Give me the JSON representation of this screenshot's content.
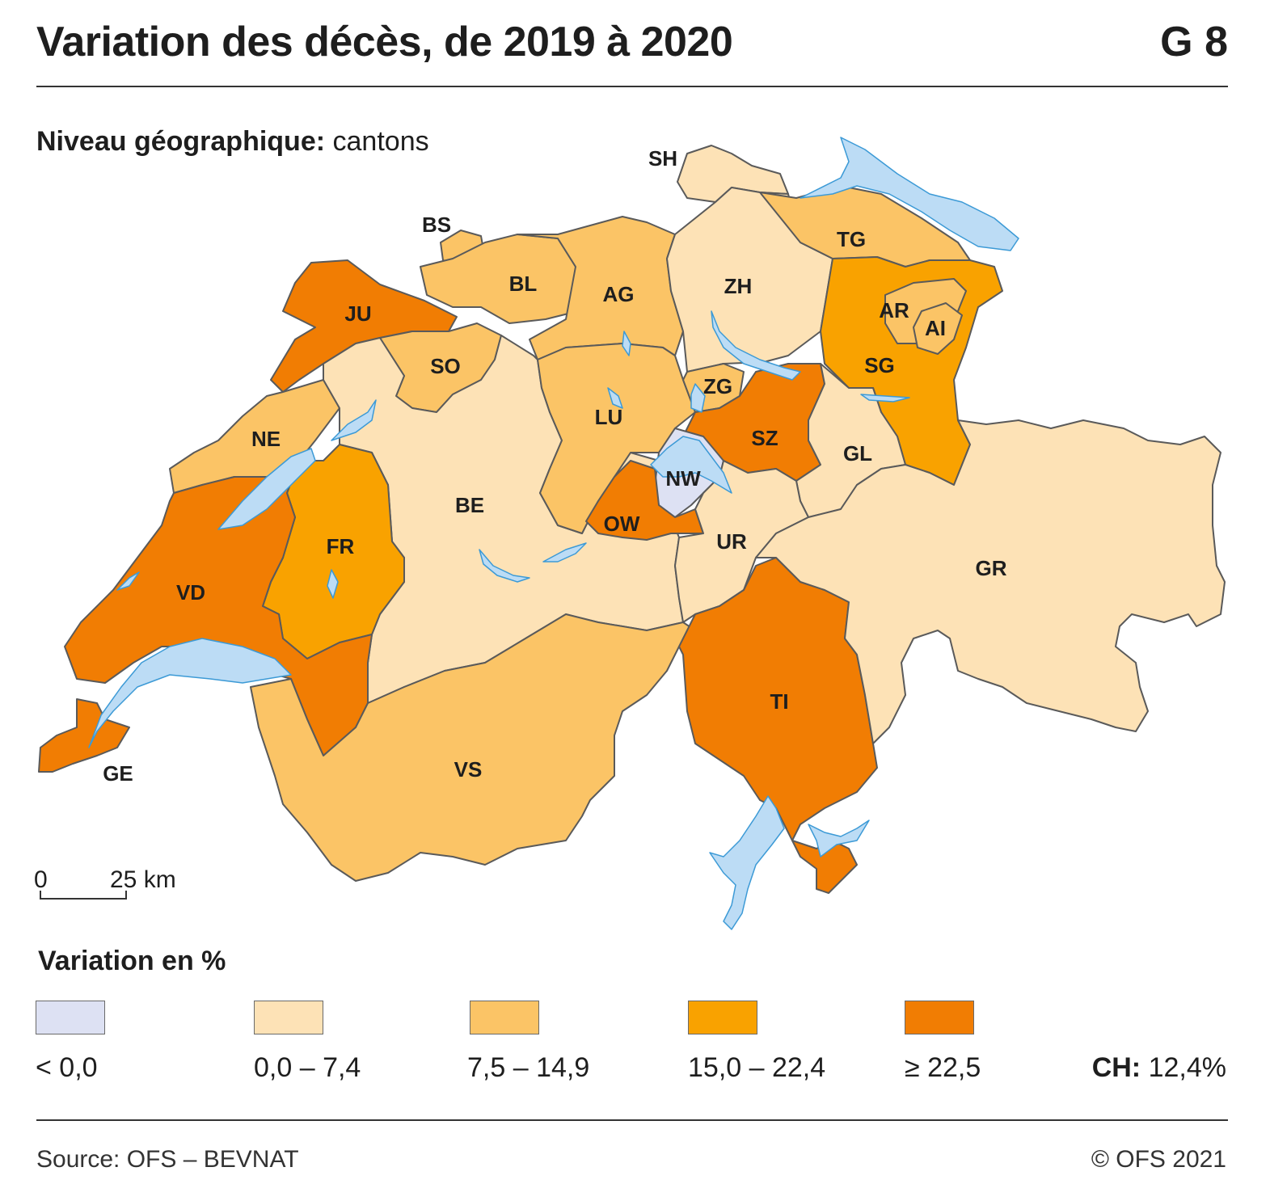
{
  "header": {
    "title": "Variation des décès, de 2019 à 2020",
    "code": "G 8"
  },
  "geo_level": {
    "label": "Niveau géographique:",
    "value": "cantons"
  },
  "colors": {
    "class_1": "#dde1f3",
    "class_2": "#fde2b6",
    "class_3": "#fbc466",
    "class_4": "#f9a200",
    "class_5": "#f17d03",
    "lake": "#bcdcf5",
    "lake_border": "#3c9ad6",
    "border": "#5a5a5a"
  },
  "legend": {
    "title": "Variation en %",
    "classes": [
      {
        "label": "< 0,0",
        "color_key": "class_1"
      },
      {
        "label": "0,0 – 7,4",
        "color_key": "class_2"
      },
      {
        "label": "7,5 – 14,9",
        "color_key": "class_3"
      },
      {
        "label": "15,0 – 22,4",
        "color_key": "class_4"
      },
      {
        "label": "≥ 22,5",
        "color_key": "class_5"
      }
    ],
    "national": {
      "label": "CH:",
      "value": "12,4%"
    }
  },
  "scale": {
    "start": "0",
    "end": "25 km"
  },
  "cantons": [
    {
      "code": "SH",
      "class": 2
    },
    {
      "code": "BS",
      "class": 3
    },
    {
      "code": "BL",
      "class": 3
    },
    {
      "code": "AG",
      "class": 3
    },
    {
      "code": "ZH",
      "class": 2
    },
    {
      "code": "TG",
      "class": 3
    },
    {
      "code": "AR",
      "class": 3
    },
    {
      "code": "AI",
      "class": 3
    },
    {
      "code": "SG",
      "class": 4
    },
    {
      "code": "JU",
      "class": 5
    },
    {
      "code": "SO",
      "class": 3
    },
    {
      "code": "NE",
      "class": 3
    },
    {
      "code": "BE",
      "class": 2
    },
    {
      "code": "LU",
      "class": 3
    },
    {
      "code": "ZG",
      "class": 3
    },
    {
      "code": "SZ",
      "class": 5
    },
    {
      "code": "GL",
      "class": 2
    },
    {
      "code": "NW",
      "class": 1
    },
    {
      "code": "OW",
      "class": 5
    },
    {
      "code": "UR",
      "class": 2
    },
    {
      "code": "FR",
      "class": 4
    },
    {
      "code": "VD",
      "class": 5
    },
    {
      "code": "GR",
      "class": 2
    },
    {
      "code": "TI",
      "class": 5
    },
    {
      "code": "VS",
      "class": 3
    },
    {
      "code": "GE",
      "class": 5
    }
  ],
  "footer": {
    "source": "Source: OFS – BEVNAT",
    "copyright": "© OFS 2021"
  }
}
